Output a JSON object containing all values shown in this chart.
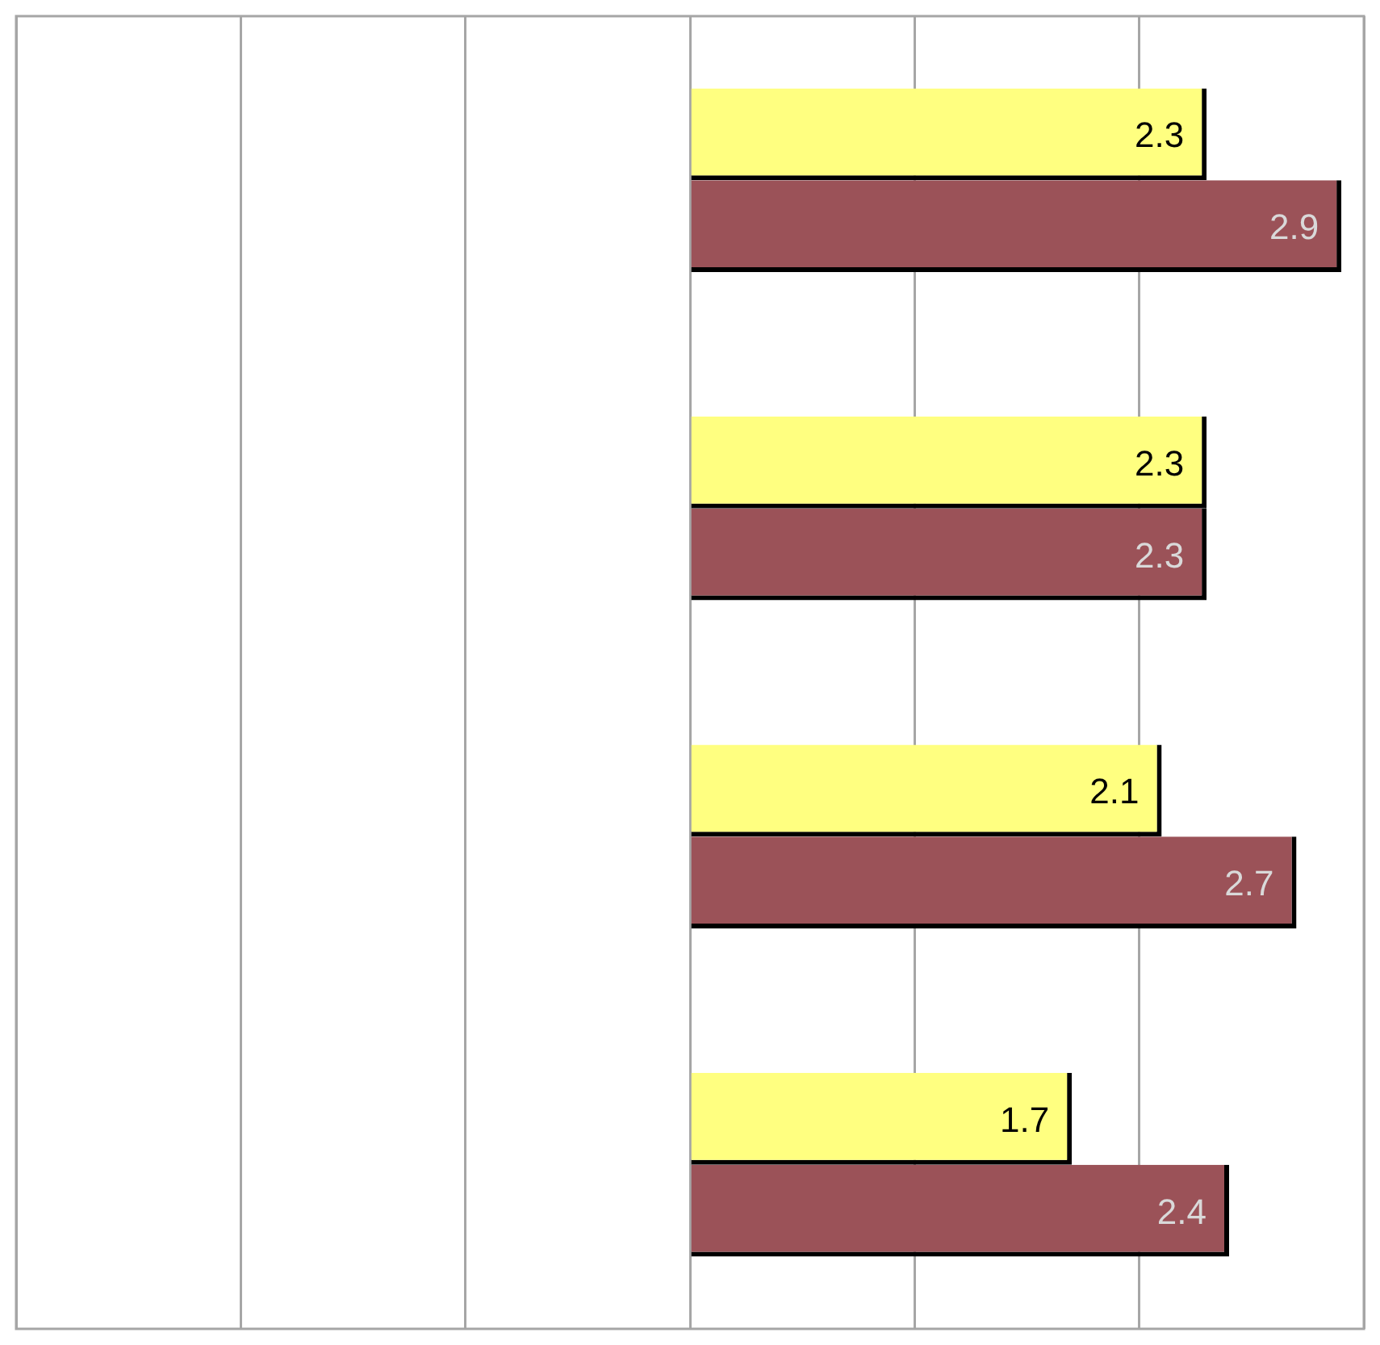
{
  "chart_data": {
    "type": "bar",
    "orientation": "horizontal",
    "categories": [
      null,
      null,
      null,
      null
    ],
    "series": [
      {
        "color": "#ffff80",
        "values": [
          2.3,
          2.3,
          2.1,
          1.7
        ]
      },
      {
        "color": "#9b5258",
        "values": [
          2.9,
          2.3,
          2.7,
          2.4
        ]
      }
    ],
    "xlim": [
      -3,
      3
    ],
    "grid": "x",
    "tick_labels": false,
    "legend": false,
    "data_labels": true
  }
}
